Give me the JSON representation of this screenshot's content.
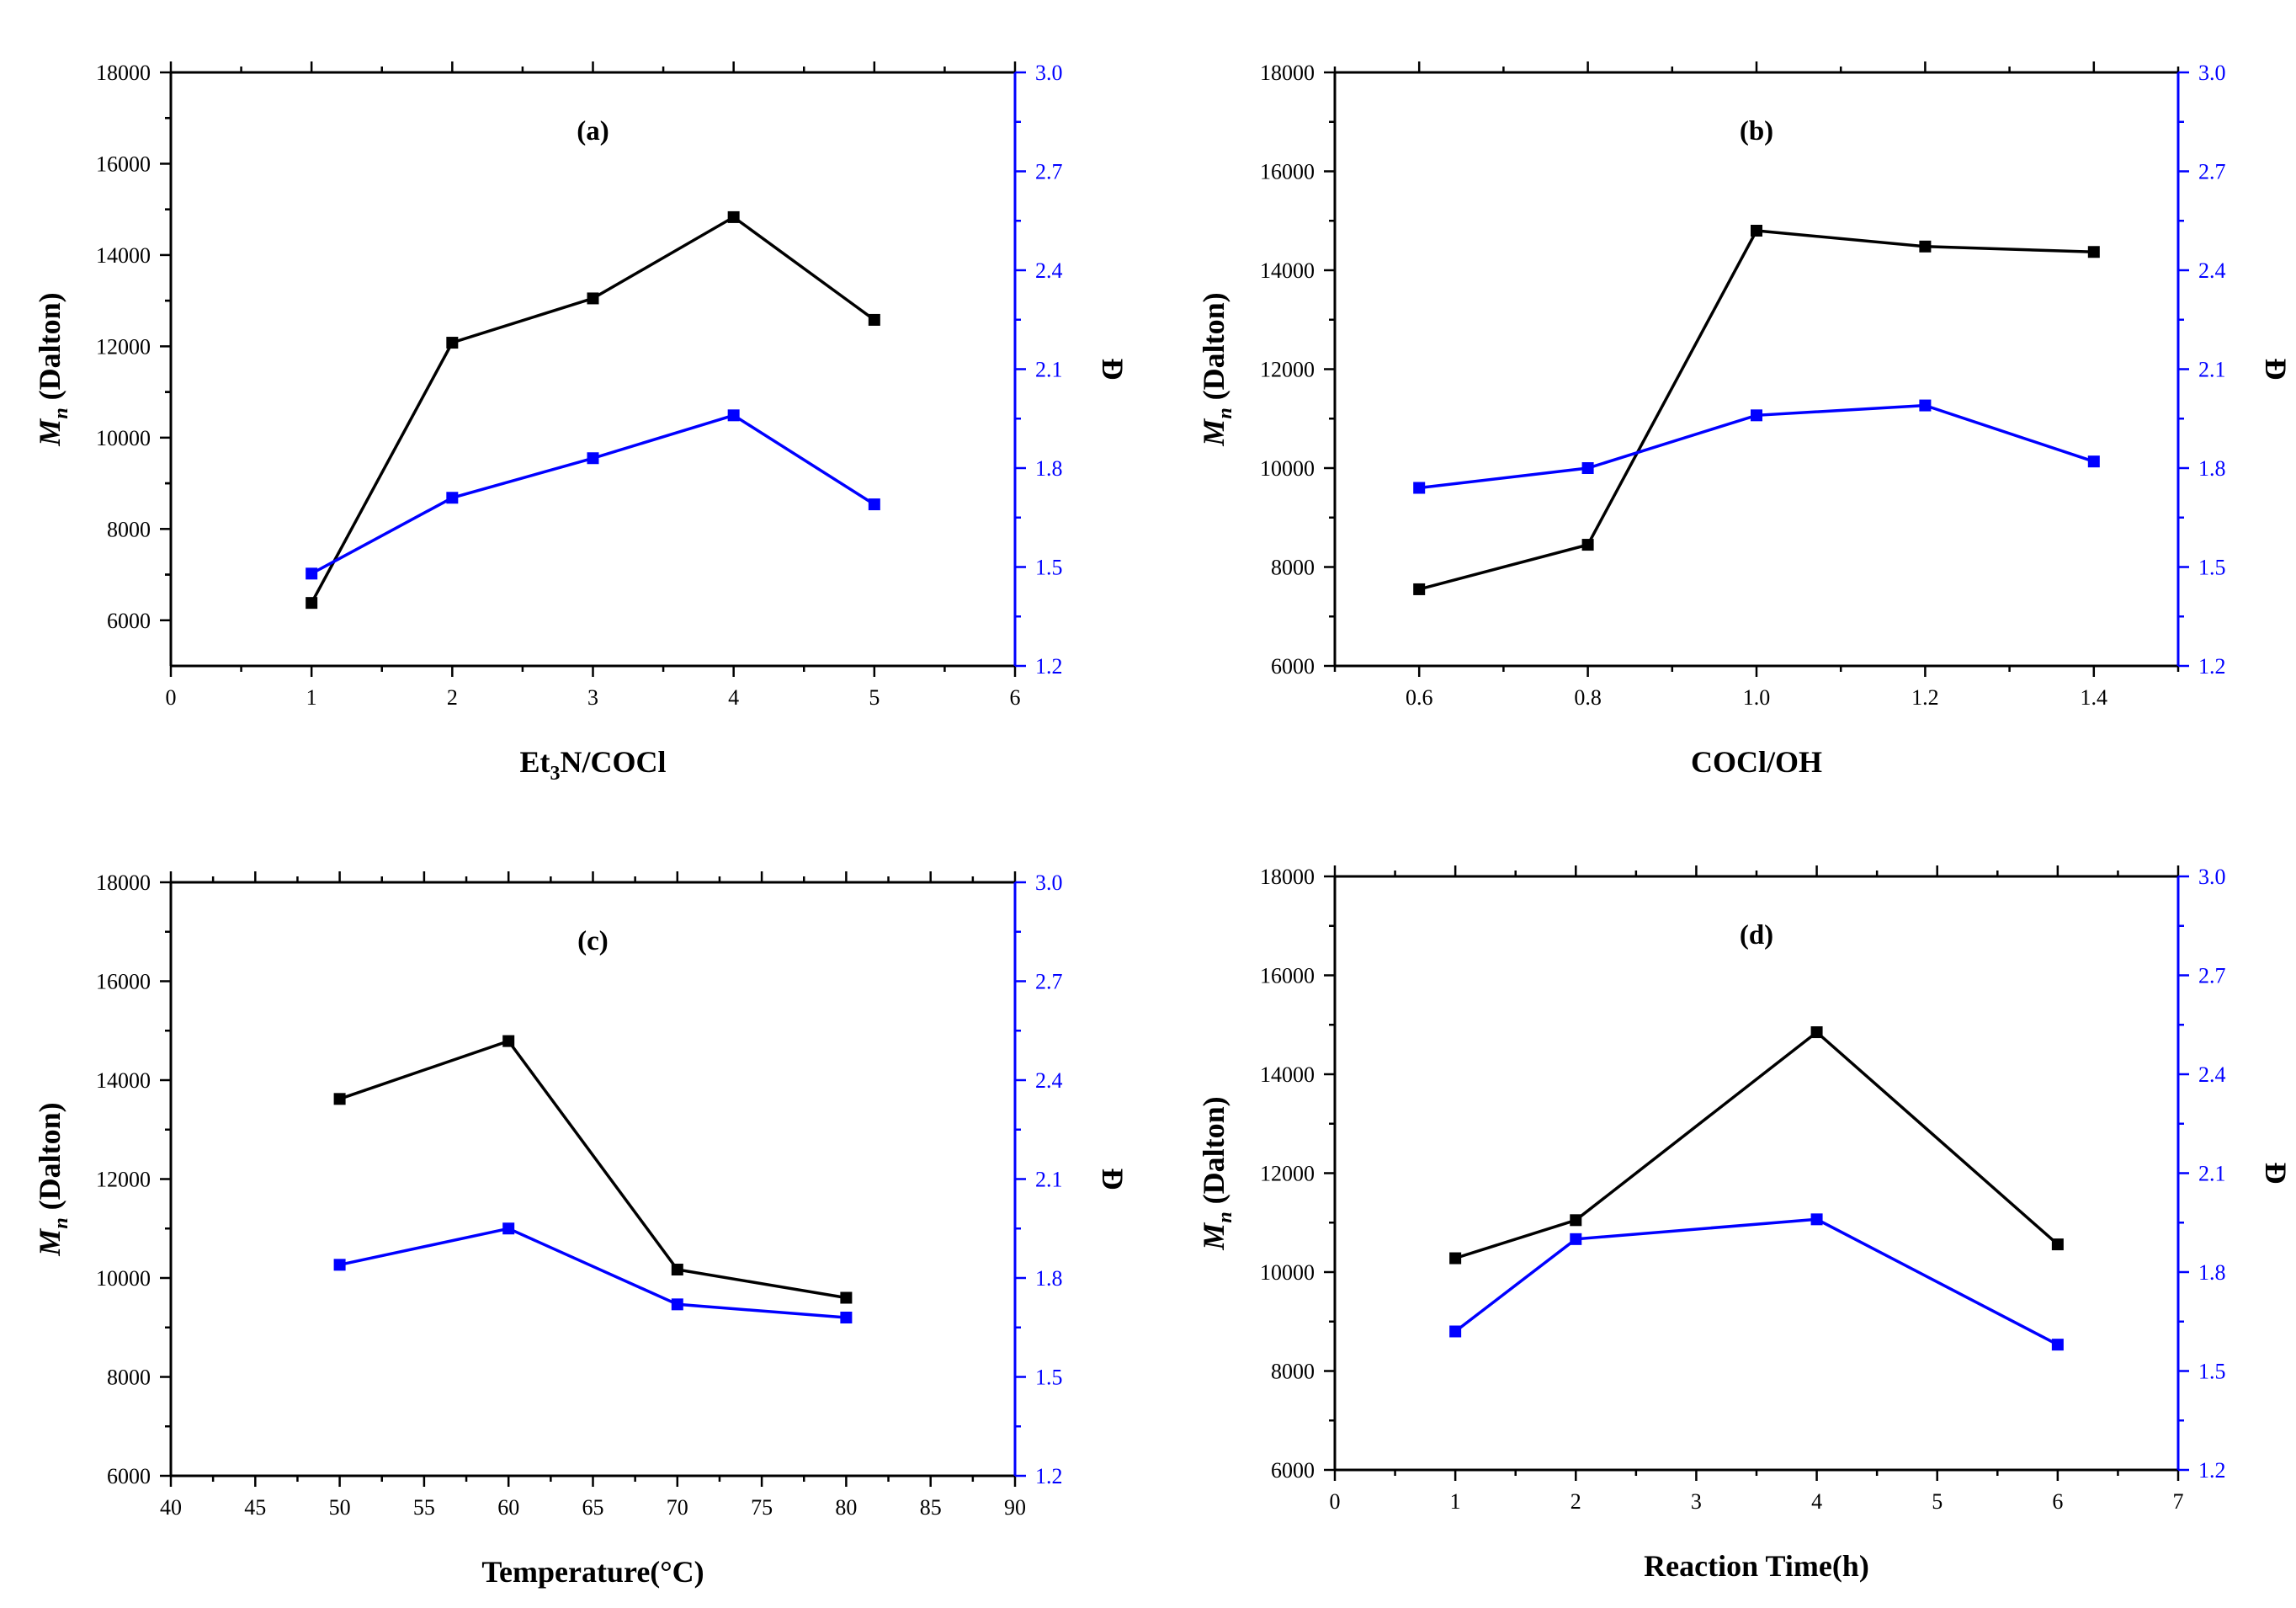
{
  "figure": {
    "left_axis_title": {
      "main": "M",
      "sub": "n",
      "rest": " (Dalton)"
    },
    "right_axis_title": "Đ",
    "left_color": "#000000",
    "right_color": "#0000ff"
  },
  "chart_data": [
    {
      "type": "line",
      "title": "(a)",
      "xlabel": "Et3N/COCl",
      "xlabel_parts": {
        "main": "Et",
        "sub": "3",
        "rest": "N/COCl"
      },
      "ylabel": "Mn (Dalton)",
      "y2label": "Đ",
      "xlim": [
        0,
        6
      ],
      "xticks": [
        0,
        1,
        2,
        3,
        4,
        5,
        6
      ],
      "xtick_labels": [
        "0",
        "1",
        "2",
        "3",
        "4",
        "5",
        "6"
      ],
      "ylim": [
        5000,
        18000
      ],
      "yticks": [
        6000,
        8000,
        10000,
        12000,
        14000,
        16000,
        18000
      ],
      "ytick_labels": [
        "6000",
        "8000",
        "10000",
        "12000",
        "14000",
        "16000",
        "18000"
      ],
      "y2lim": [
        1.2,
        3.0
      ],
      "y2ticks": [
        1.2,
        1.5,
        1.8,
        2.1,
        2.4,
        2.7,
        3.0
      ],
      "y2tick_labels": [
        "1.2",
        "1.5",
        "1.8",
        "2.1",
        "2.4",
        "2.7",
        "3.0"
      ],
      "series": [
        {
          "name": "Mn",
          "axis": "left",
          "color": "#000000",
          "x": [
            1,
            2,
            3,
            4,
            5
          ],
          "values": [
            6380,
            12080,
            13050,
            14830,
            12580
          ]
        },
        {
          "name": "Đ",
          "axis": "right",
          "color": "#0000ff",
          "x": [
            1,
            2,
            3,
            4,
            5
          ],
          "values": [
            1.48,
            1.71,
            1.83,
            1.96,
            1.69
          ]
        }
      ]
    },
    {
      "type": "line",
      "title": "(b)",
      "xlabel": "COCl/OH",
      "xlabel_parts": {
        "main": "COCl/OH",
        "sub": "",
        "rest": ""
      },
      "ylabel": "Mn (Dalton)",
      "y2label": "Đ",
      "xlim": [
        0.5,
        1.5
      ],
      "xticks": [
        0.6,
        0.8,
        1.0,
        1.2,
        1.4
      ],
      "xtick_labels": [
        "0.6",
        "0.8",
        "1.0",
        "1.2",
        "1.4"
      ],
      "ylim": [
        6000,
        18000
      ],
      "yticks": [
        6000,
        8000,
        10000,
        12000,
        14000,
        16000,
        18000
      ],
      "ytick_labels": [
        "6000",
        "8000",
        "10000",
        "12000",
        "14000",
        "16000",
        "18000"
      ],
      "y2lim": [
        1.2,
        3.0
      ],
      "y2ticks": [
        1.2,
        1.5,
        1.8,
        2.1,
        2.4,
        2.7,
        3.0
      ],
      "y2tick_labels": [
        "1.2",
        "1.5",
        "1.8",
        "2.1",
        "2.4",
        "2.7",
        "3.0"
      ],
      "series": [
        {
          "name": "Mn",
          "axis": "left",
          "color": "#000000",
          "x": [
            0.6,
            0.8,
            1.0,
            1.2,
            1.4
          ],
          "values": [
            7550,
            8450,
            14800,
            14480,
            14370
          ]
        },
        {
          "name": "Đ",
          "axis": "right",
          "color": "#0000ff",
          "x": [
            0.6,
            0.8,
            1.0,
            1.2,
            1.4
          ],
          "values": [
            1.74,
            1.8,
            1.96,
            1.99,
            1.82
          ]
        }
      ]
    },
    {
      "type": "line",
      "title": "(c)",
      "xlabel": "Temperature(°C)",
      "xlabel_parts": {
        "main": "Temperature(°C)",
        "sub": "",
        "rest": ""
      },
      "ylabel": "Mn (Dalton)",
      "y2label": "Đ",
      "xlim": [
        40,
        90
      ],
      "xticks": [
        40,
        45,
        50,
        55,
        60,
        65,
        70,
        75,
        80,
        85,
        90
      ],
      "xtick_labels": [
        "40",
        "45",
        "50",
        "55",
        "60",
        "65",
        "70",
        "75",
        "80",
        "85",
        "90"
      ],
      "ylim": [
        6000,
        18000
      ],
      "yticks": [
        6000,
        8000,
        10000,
        12000,
        14000,
        16000,
        18000
      ],
      "ytick_labels": [
        "6000",
        "8000",
        "10000",
        "12000",
        "14000",
        "16000",
        "18000"
      ],
      "y2lim": [
        1.2,
        3.0
      ],
      "y2ticks": [
        1.2,
        1.5,
        1.8,
        2.1,
        2.4,
        2.7,
        3.0
      ],
      "y2tick_labels": [
        "1.2",
        "1.5",
        "1.8",
        "2.1",
        "2.4",
        "2.7",
        "3.0"
      ],
      "series": [
        {
          "name": "Mn",
          "axis": "left",
          "color": "#000000",
          "x": [
            50,
            60,
            70,
            80
          ],
          "values": [
            13620,
            14790,
            10170,
            9600
          ]
        },
        {
          "name": "Đ",
          "axis": "right",
          "color": "#0000ff",
          "x": [
            50,
            60,
            70,
            80
          ],
          "values": [
            1.84,
            1.95,
            1.72,
            1.68
          ]
        }
      ]
    },
    {
      "type": "line",
      "title": "(d)",
      "xlabel": "Reaction Time(h)",
      "xlabel_parts": {
        "main": "Reaction Time(h)",
        "sub": "",
        "rest": ""
      },
      "ylabel": "Mn (Dalton)",
      "y2label": "Đ",
      "xlim": [
        0,
        7
      ],
      "xticks": [
        0,
        1,
        2,
        3,
        4,
        5,
        6,
        7
      ],
      "xtick_labels": [
        "0",
        "1",
        "2",
        "3",
        "4",
        "5",
        "6",
        "7"
      ],
      "ylim": [
        6000,
        18000
      ],
      "yticks": [
        6000,
        8000,
        10000,
        12000,
        14000,
        16000,
        18000
      ],
      "ytick_labels": [
        "6000",
        "8000",
        "10000",
        "12000",
        "14000",
        "16000",
        "18000"
      ],
      "y2lim": [
        1.2,
        3.0
      ],
      "y2ticks": [
        1.2,
        1.5,
        1.8,
        2.1,
        2.4,
        2.7,
        3.0
      ],
      "y2tick_labels": [
        "1.2",
        "1.5",
        "1.8",
        "2.1",
        "2.4",
        "2.7",
        "3.0"
      ],
      "series": [
        {
          "name": "Mn",
          "axis": "left",
          "color": "#000000",
          "x": [
            1,
            2,
            4,
            6
          ],
          "values": [
            10280,
            11050,
            14850,
            10560
          ]
        },
        {
          "name": "Đ",
          "axis": "right",
          "color": "#0000ff",
          "x": [
            1,
            2,
            4,
            6
          ],
          "values": [
            1.62,
            1.9,
            1.96,
            1.58
          ]
        }
      ]
    }
  ]
}
